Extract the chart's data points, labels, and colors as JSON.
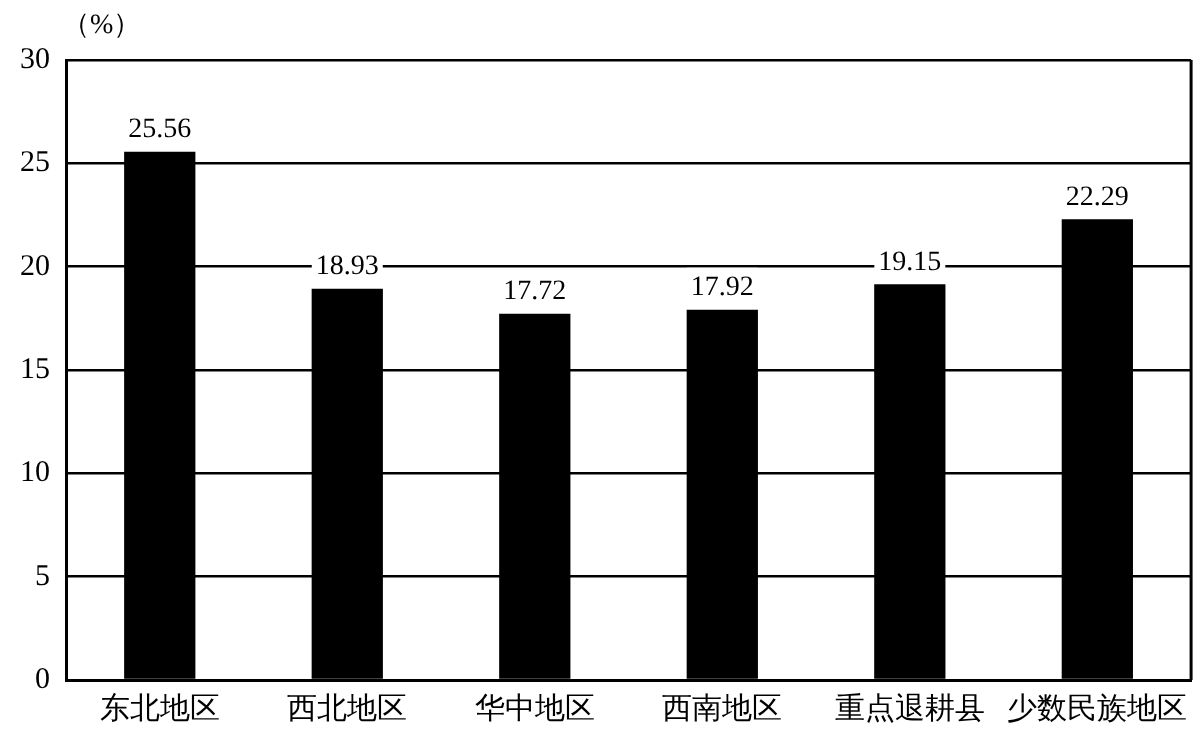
{
  "chart_data": {
    "type": "bar",
    "ylabel": "（%）",
    "categories": [
      "东北地区",
      "西北地区",
      "华中地区",
      "西南地区",
      "重点退耕县",
      "少数民族地区"
    ],
    "values": [
      25.56,
      18.93,
      17.72,
      17.92,
      19.15,
      22.29
    ],
    "color": "#000000",
    "ylim": [
      0,
      30
    ],
    "yticks": [
      0,
      5,
      10,
      15,
      20,
      25,
      30
    ],
    "grid": "y",
    "data_labels": true,
    "legend": false
  }
}
